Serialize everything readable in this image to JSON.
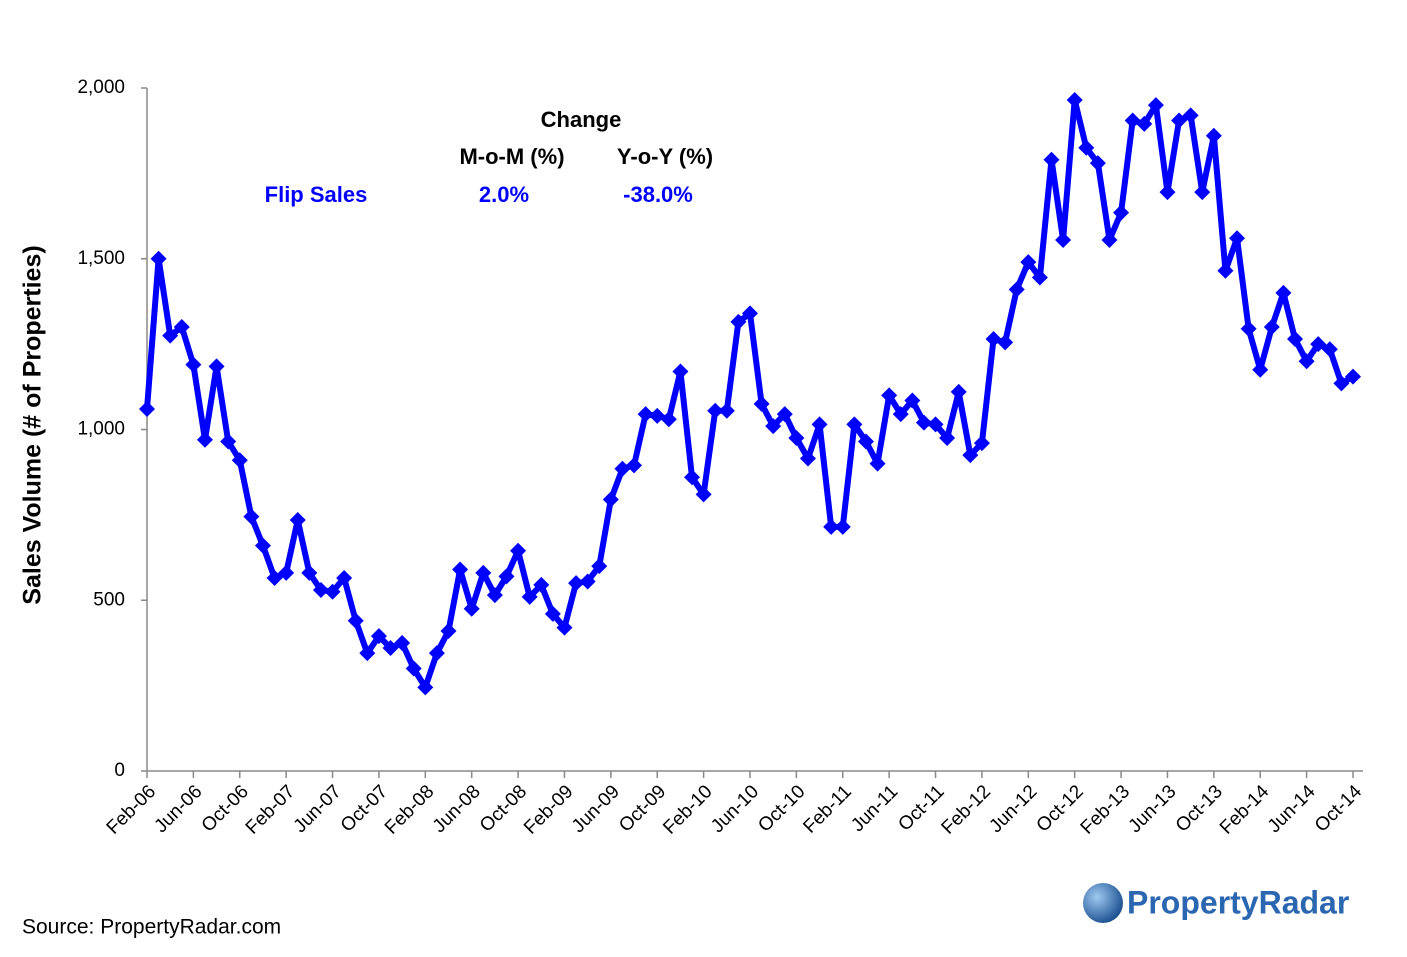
{
  "chart_data": {
    "type": "line",
    "y_axis_label": "Sales Volume (# of Properties)",
    "source": "Source: PropertyRadar.com",
    "logo": "PropertyRadar",
    "annotation": {
      "heading": "Change",
      "columns": [
        "M-o-M (%)",
        "Y-o-Y (%)"
      ],
      "row_label": "Flip Sales",
      "row_values": [
        "2.0%",
        "-38.0%"
      ]
    },
    "categories": [
      "Feb-06",
      null,
      null,
      null,
      "Jun-06",
      null,
      null,
      null,
      "Oct-06",
      null,
      null,
      null,
      "Feb-07",
      null,
      null,
      null,
      "Jun-07",
      null,
      null,
      null,
      "Oct-07",
      null,
      null,
      null,
      "Feb-08",
      null,
      null,
      null,
      "Jun-08",
      null,
      null,
      null,
      "Oct-08",
      null,
      null,
      null,
      "Feb-09",
      null,
      null,
      null,
      "Jun-09",
      null,
      null,
      null,
      "Oct-09",
      null,
      null,
      null,
      "Feb-10",
      null,
      null,
      null,
      "Jun-10",
      null,
      null,
      null,
      "Oct-10",
      null,
      null,
      null,
      "Feb-11",
      null,
      null,
      null,
      "Jun-11",
      null,
      null,
      null,
      "Oct-11",
      null,
      null,
      null,
      "Feb-12",
      null,
      null,
      null,
      "Jun-12",
      null,
      null,
      null,
      "Oct-12",
      null,
      null,
      null,
      "Feb-13",
      null,
      null,
      null,
      "Jun-13",
      null,
      null,
      null,
      "Oct-13",
      null,
      null,
      null,
      "Feb-14",
      null,
      null,
      null,
      "Jun-14",
      null,
      null,
      null,
      "Oct-14"
    ],
    "series": [
      {
        "name": "Flip Sales",
        "color": "#0000ff",
        "values": [
          1060,
          1500,
          1275,
          1300,
          1190,
          970,
          1185,
          965,
          910,
          745,
          660,
          565,
          580,
          735,
          580,
          530,
          525,
          565,
          440,
          345,
          395,
          360,
          375,
          300,
          245,
          345,
          410,
          590,
          475,
          580,
          515,
          570,
          645,
          510,
          545,
          460,
          420,
          550,
          555,
          600,
          795,
          885,
          895,
          1045,
          1040,
          1030,
          1170,
          860,
          810,
          1055,
          1055,
          1315,
          1340,
          1075,
          1010,
          1045,
          975,
          915,
          1015,
          715,
          715,
          1015,
          965,
          900,
          1100,
          1045,
          1085,
          1020,
          1015,
          975,
          1110,
          925,
          960,
          1265,
          1255,
          1410,
          1490,
          1445,
          1790,
          1555,
          1965,
          1825,
          1780,
          1555,
          1635,
          1905,
          1895,
          1950,
          1695,
          1905,
          1920,
          1695,
          1860,
          1465,
          1560,
          1295,
          1175,
          1300,
          1400,
          1265,
          1200,
          1250,
          1235,
          1135,
          1155
        ]
      }
    ],
    "ylim": [
      0,
      2000
    ],
    "yticks": [
      0,
      500,
      {
        "value": 1000,
        "label": "1,000"
      },
      {
        "value": 1500,
        "label": "1,500"
      },
      {
        "value": 2000,
        "label": "2,000"
      }
    ],
    "grid": false
  }
}
